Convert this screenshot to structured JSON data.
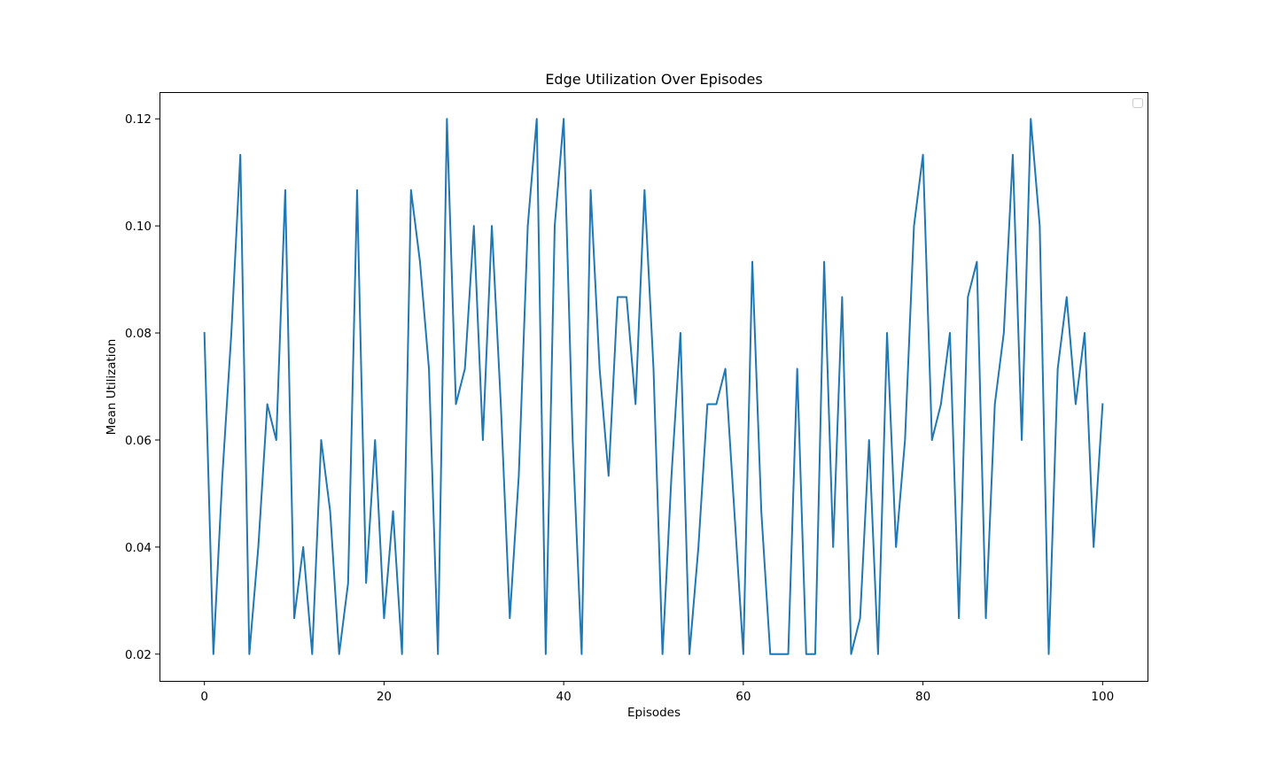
{
  "chart_data": {
    "type": "line",
    "title": "Edge Utilization Over Episodes",
    "xlabel": "Episodes",
    "ylabel": "Mean Utilization",
    "xlim": [
      -5,
      105
    ],
    "ylim": [
      0.015,
      0.125
    ],
    "xticks": [
      0,
      20,
      40,
      60,
      80,
      100
    ],
    "xtick_labels": [
      "0",
      "20",
      "40",
      "60",
      "80",
      "100"
    ],
    "yticks": [
      0.02,
      0.04,
      0.06,
      0.08,
      0.1,
      0.12
    ],
    "ytick_labels": [
      "0.02",
      "0.04",
      "0.06",
      "0.08",
      "0.10",
      "0.12"
    ],
    "grid": false,
    "legend": "upper right (empty)",
    "series": [
      {
        "color": "#1f77b4",
        "x": [
          0,
          1,
          2,
          3,
          4,
          5,
          6,
          7,
          8,
          9,
          10,
          11,
          12,
          13,
          14,
          15,
          16,
          17,
          18,
          19,
          20,
          21,
          22,
          23,
          24,
          25,
          26,
          27,
          28,
          29,
          30,
          31,
          32,
          33,
          34,
          35,
          36,
          37,
          38,
          39,
          40,
          41,
          42,
          43,
          44,
          45,
          46,
          47,
          48,
          49,
          50,
          51,
          52,
          53,
          54,
          55,
          56,
          57,
          58,
          59,
          60,
          61,
          62,
          63,
          64,
          65,
          66,
          67,
          68,
          69,
          70,
          71,
          72,
          73,
          74,
          75,
          76,
          77,
          78,
          79,
          80,
          81,
          82,
          83,
          84,
          85,
          86,
          87,
          88,
          89,
          90,
          91,
          92,
          93,
          94,
          95,
          96,
          97,
          98,
          99,
          100
        ],
        "values": [
          0.08,
          0.02,
          0.0533,
          0.08,
          0.1133,
          0.02,
          0.04,
          0.0667,
          0.06,
          0.1067,
          0.0267,
          0.04,
          0.02,
          0.06,
          0.0467,
          0.02,
          0.0333,
          0.1067,
          0.0333,
          0.06,
          0.0267,
          0.0467,
          0.02,
          0.1067,
          0.0933,
          0.0733,
          0.02,
          0.12,
          0.0667,
          0.0733,
          0.1,
          0.06,
          0.1,
          0.0667,
          0.0267,
          0.0533,
          0.1,
          0.12,
          0.02,
          0.1,
          0.12,
          0.06,
          0.02,
          0.1067,
          0.0733,
          0.0533,
          0.0867,
          0.0867,
          0.0667,
          0.1067,
          0.0733,
          0.02,
          0.0533,
          0.08,
          0.02,
          0.04,
          0.0667,
          0.0667,
          0.0733,
          0.0467,
          0.02,
          0.0933,
          0.0467,
          0.02,
          0.02,
          0.02,
          0.0733,
          0.02,
          0.02,
          0.0933,
          0.04,
          0.0867,
          0.02,
          0.0267,
          0.06,
          0.02,
          0.08,
          0.04,
          0.06,
          0.1,
          0.1133,
          0.06,
          0.0667,
          0.08,
          0.0267,
          0.0867,
          0.0933,
          0.0267,
          0.0667,
          0.08,
          0.1133,
          0.06,
          0.12,
          0.1,
          0.02,
          0.0733,
          0.0867,
          0.0667,
          0.08,
          0.04,
          0.0667
        ]
      }
    ]
  }
}
